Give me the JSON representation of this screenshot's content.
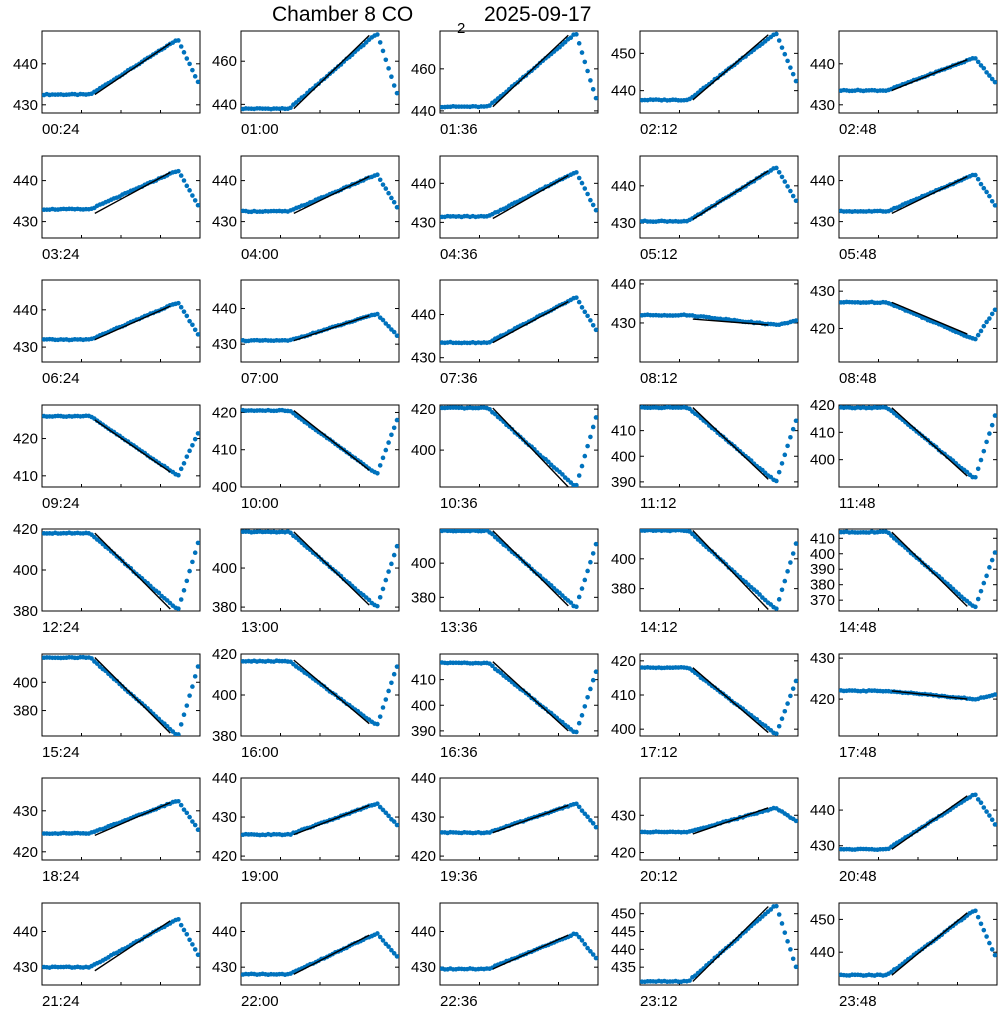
{
  "title": {
    "prefix": "Chamber 8 CO",
    "subscript": "2",
    "date": "2025-09-17"
  },
  "colors": {
    "data_points": "#0072bd",
    "fit_line": "#000000",
    "axes": "#000000"
  },
  "chart_data": [
    {
      "type": "scatter",
      "time_label": "00:24",
      "ylim": [
        428,
        448
      ],
      "yticks": [
        430,
        440
      ],
      "shape": "rise",
      "start": 432.5,
      "peak": 446,
      "end": 435.5,
      "fit": [
        432.5,
        445
      ]
    },
    {
      "type": "scatter",
      "time_label": "01:00",
      "ylim": [
        436,
        474
      ],
      "yticks": [
        440,
        460
      ],
      "shape": "rise",
      "start": 438,
      "peak": 473,
      "end": 445,
      "fit": [
        438,
        472
      ]
    },
    {
      "type": "scatter",
      "time_label": "01:36",
      "ylim": [
        439,
        478
      ],
      "yticks": [
        440,
        460
      ],
      "shape": "rise",
      "start": 442,
      "peak": 477,
      "end": 446,
      "fit": [
        442,
        476
      ]
    },
    {
      "type": "scatter",
      "time_label": "02:12",
      "ylim": [
        434,
        456
      ],
      "yticks": [
        440,
        450
      ],
      "shape": "rise",
      "start": 437.5,
      "peak": 455.5,
      "end": 442.5,
      "fit": [
        437.5,
        455
      ]
    },
    {
      "type": "scatter",
      "time_label": "02:48",
      "ylim": [
        428,
        448
      ],
      "yticks": [
        430,
        440
      ],
      "shape": "rise",
      "start": 433.5,
      "peak": 441.5,
      "end": 435.5,
      "fit": [
        433.5,
        441
      ]
    },
    {
      "type": "scatter",
      "time_label": "03:24",
      "ylim": [
        426,
        446
      ],
      "yticks": [
        430,
        440
      ],
      "shape": "rise",
      "start": 433,
      "peak": 442.5,
      "end": 434,
      "fit": [
        432,
        442
      ]
    },
    {
      "type": "scatter",
      "time_label": "04:00",
      "ylim": [
        426,
        446
      ],
      "yticks": [
        430,
        440
      ],
      "shape": "rise",
      "start": 432.5,
      "peak": 441.5,
      "end": 433.5,
      "fit": [
        432,
        441
      ]
    },
    {
      "type": "scatter",
      "time_label": "04:36",
      "ylim": [
        426,
        447
      ],
      "yticks": [
        430,
        440
      ],
      "shape": "rise",
      "start": 431.5,
      "peak": 443,
      "end": 433,
      "fit": [
        431,
        442
      ]
    },
    {
      "type": "scatter",
      "time_label": "05:12",
      "ylim": [
        426,
        448
      ],
      "yticks": [
        430,
        440
      ],
      "shape": "rise",
      "start": 430.5,
      "peak": 445,
      "end": 436,
      "fit": [
        431,
        444
      ]
    },
    {
      "type": "scatter",
      "time_label": "05:48",
      "ylim": [
        426,
        446
      ],
      "yticks": [
        430,
        440
      ],
      "shape": "rise",
      "start": 432.5,
      "peak": 441.5,
      "end": 434,
      "fit": [
        432,
        441
      ]
    },
    {
      "type": "scatter",
      "time_label": "06:24",
      "ylim": [
        426,
        448
      ],
      "yticks": [
        430,
        440
      ],
      "shape": "rise",
      "start": 432,
      "peak": 442,
      "end": 433.5,
      "fit": [
        432,
        441
      ]
    },
    {
      "type": "scatter",
      "time_label": "07:00",
      "ylim": [
        425,
        448
      ],
      "yticks": [
        430,
        440
      ],
      "shape": "rise",
      "start": 431,
      "peak": 438.5,
      "end": 432.5,
      "fit": [
        431,
        438
      ]
    },
    {
      "type": "scatter",
      "time_label": "07:36",
      "ylim": [
        429,
        448
      ],
      "yticks": [
        430,
        440
      ],
      "shape": "rise",
      "start": 433.5,
      "peak": 444,
      "end": 436.5,
      "fit": [
        433.5,
        443
      ]
    },
    {
      "type": "scatter",
      "time_label": "08:12",
      "ylim": [
        420,
        441
      ],
      "yticks": [
        430,
        440
      ],
      "shape": "flat",
      "start": 432,
      "peak": 429.5,
      "end": 430.5,
      "fit": [
        431,
        429.5
      ]
    },
    {
      "type": "scatter",
      "time_label": "08:48",
      "ylim": [
        411,
        433
      ],
      "yticks": [
        420,
        430
      ],
      "shape": "dip",
      "start": 427,
      "peak": 417,
      "end": 425,
      "fit": [
        427,
        418.5
      ]
    },
    {
      "type": "scatter",
      "time_label": "09:24",
      "ylim": [
        407,
        429
      ],
      "yticks": [
        410,
        420
      ],
      "shape": "dip",
      "start": 426,
      "peak": 410,
      "end": 421.5,
      "fit": [
        425,
        411
      ]
    },
    {
      "type": "scatter",
      "time_label": "10:00",
      "ylim": [
        400,
        422
      ],
      "yticks": [
        400,
        410,
        420
      ],
      "shape": "dip",
      "start": 420.5,
      "peak": 403.5,
      "end": 418,
      "fit": [
        420.5,
        404.5
      ]
    },
    {
      "type": "scatter",
      "time_label": "10:36",
      "ylim": [
        382,
        422
      ],
      "yticks": [
        400,
        420
      ],
      "shape": "dip",
      "start": 420.5,
      "peak": 382,
      "end": 416,
      "fit": [
        420.5,
        382
      ]
    },
    {
      "type": "scatter",
      "time_label": "11:12",
      "ylim": [
        388,
        420
      ],
      "yticks": [
        390,
        400,
        410
      ],
      "shape": "dip",
      "start": 419,
      "peak": 390,
      "end": 414,
      "fit": [
        419,
        391
      ]
    },
    {
      "type": "scatter",
      "time_label": "11:48",
      "ylim": [
        390,
        420
      ],
      "yticks": [
        400,
        410,
        420
      ],
      "shape": "dip",
      "start": 419,
      "peak": 393,
      "end": 416,
      "fit": [
        419,
        394
      ]
    },
    {
      "type": "scatter",
      "time_label": "12:24",
      "ylim": [
        380,
        420
      ],
      "yticks": [
        380,
        400,
        420
      ],
      "shape": "dip",
      "start": 418,
      "peak": 380.5,
      "end": 413,
      "fit": [
        418,
        381
      ]
    },
    {
      "type": "scatter",
      "time_label": "13:00",
      "ylim": [
        378,
        420
      ],
      "yticks": [
        380,
        400
      ],
      "shape": "dip",
      "start": 418.5,
      "peak": 380,
      "end": 411,
      "fit": [
        418.5,
        381
      ]
    },
    {
      "type": "scatter",
      "time_label": "13:36",
      "ylim": [
        372,
        420
      ],
      "yticks": [
        380,
        400
      ],
      "shape": "dip",
      "start": 419,
      "peak": 374,
      "end": 411,
      "fit": [
        419,
        375
      ]
    },
    {
      "type": "scatter",
      "time_label": "14:12",
      "ylim": [
        365,
        420
      ],
      "yticks": [
        380,
        400
      ],
      "shape": "dip",
      "start": 419,
      "peak": 366,
      "end": 410,
      "fit": [
        419,
        366
      ]
    },
    {
      "type": "scatter",
      "time_label": "14:48",
      "ylim": [
        363,
        416
      ],
      "yticks": [
        370,
        380,
        390,
        400,
        410
      ],
      "shape": "dip",
      "start": 414,
      "peak": 365,
      "end": 401,
      "fit": [
        414,
        366
      ]
    },
    {
      "type": "scatter",
      "time_label": "15:24",
      "ylim": [
        362,
        420
      ],
      "yticks": [
        380,
        400
      ],
      "shape": "dip",
      "start": 417.5,
      "peak": 362,
      "end": 411,
      "fit": [
        417.5,
        364
      ]
    },
    {
      "type": "scatter",
      "time_label": "16:00",
      "ylim": [
        380,
        420
      ],
      "yticks": [
        380,
        400,
        420
      ],
      "shape": "dip",
      "start": 416.5,
      "peak": 385,
      "end": 414,
      "fit": [
        417,
        386
      ]
    },
    {
      "type": "scatter",
      "time_label": "16:36",
      "ylim": [
        388,
        420
      ],
      "yticks": [
        390,
        400,
        410
      ],
      "shape": "dip",
      "start": 416.5,
      "peak": 389,
      "end": 413,
      "fit": [
        417,
        390
      ]
    },
    {
      "type": "scatter",
      "time_label": "17:12",
      "ylim": [
        398,
        422
      ],
      "yticks": [
        400,
        410,
        420
      ],
      "shape": "dip",
      "start": 418,
      "peak": 398.5,
      "end": 414,
      "fit": [
        418,
        399
      ]
    },
    {
      "type": "scatter",
      "time_label": "17:48",
      "ylim": [
        411,
        431
      ],
      "yticks": [
        420,
        430
      ],
      "shape": "flat",
      "start": 422,
      "peak": 420,
      "end": 421,
      "fit": [
        422,
        420
      ]
    },
    {
      "type": "scatter",
      "time_label": "18:24",
      "ylim": [
        418,
        438
      ],
      "yticks": [
        420,
        430
      ],
      "shape": "rise",
      "start": 424.5,
      "peak": 432.5,
      "end": 425.5,
      "fit": [
        424,
        432
      ]
    },
    {
      "type": "scatter",
      "time_label": "19:00",
      "ylim": [
        419,
        440
      ],
      "yticks": [
        420,
        430,
        440
      ],
      "shape": "rise",
      "start": 425.5,
      "peak": 433.5,
      "end": 428,
      "fit": [
        425.5,
        433
      ]
    },
    {
      "type": "scatter",
      "time_label": "19:36",
      "ylim": [
        419,
        440
      ],
      "yticks": [
        420,
        430,
        440
      ],
      "shape": "rise",
      "start": 426,
      "peak": 433.5,
      "end": 427.5,
      "fit": [
        426,
        433
      ]
    },
    {
      "type": "scatter",
      "time_label": "20:12",
      "ylim": [
        418,
        440
      ],
      "yticks": [
        420,
        430
      ],
      "shape": "rise",
      "start": 425.5,
      "peak": 432,
      "end": 428.5,
      "fit": [
        425,
        432
      ]
    },
    {
      "type": "scatter",
      "time_label": "20:48",
      "ylim": [
        426,
        449
      ],
      "yticks": [
        430,
        440
      ],
      "shape": "rise",
      "start": 429,
      "peak": 444.5,
      "end": 436,
      "fit": [
        429,
        444
      ]
    },
    {
      "type": "scatter",
      "time_label": "21:24",
      "ylim": [
        425,
        448
      ],
      "yticks": [
        430,
        440
      ],
      "shape": "rise",
      "start": 430,
      "peak": 443.5,
      "end": 433.5,
      "fit": [
        429,
        443
      ]
    },
    {
      "type": "scatter",
      "time_label": "22:00",
      "ylim": [
        425,
        448
      ],
      "yticks": [
        430,
        440
      ],
      "shape": "rise",
      "start": 428,
      "peak": 439.5,
      "end": 433,
      "fit": [
        428,
        439
      ]
    },
    {
      "type": "scatter",
      "time_label": "22:36",
      "ylim": [
        425,
        448
      ],
      "yticks": [
        430,
        440
      ],
      "shape": "rise",
      "start": 429.5,
      "peak": 439.5,
      "end": 432.5,
      "fit": [
        429.5,
        439
      ]
    },
    {
      "type": "scatter",
      "time_label": "23:12",
      "ylim": [
        430,
        453
      ],
      "yticks": [
        435,
        440,
        445,
        450
      ],
      "shape": "rise",
      "start": 431,
      "peak": 452.5,
      "end": 435,
      "fit": [
        431,
        452
      ]
    },
    {
      "type": "scatter",
      "time_label": "23:48",
      "ylim": [
        430,
        455
      ],
      "yticks": [
        440,
        450
      ],
      "shape": "rise",
      "start": 433,
      "peak": 453,
      "end": 439,
      "fit": [
        433,
        452
      ]
    }
  ]
}
